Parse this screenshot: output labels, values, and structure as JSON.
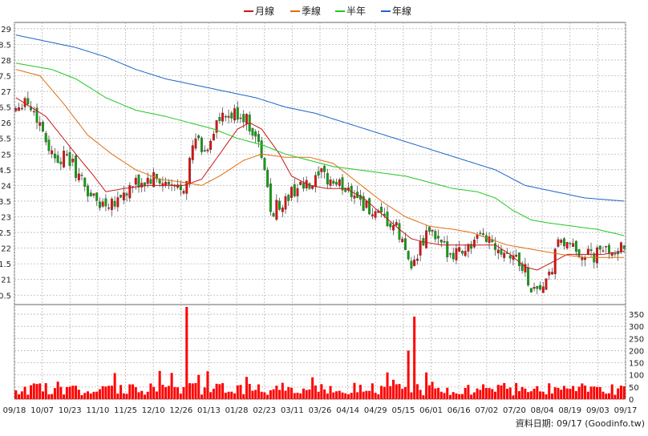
{
  "legend": [
    {
      "label": "月線",
      "color": "#c81818"
    },
    {
      "label": "季線",
      "color": "#e06e10"
    },
    {
      "label": "半年",
      "color": "#22c822"
    },
    {
      "label": "年線",
      "color": "#1e64c8"
    }
  ],
  "footer": {
    "label": "資料日期: 09/17  (Goodinfo.tw)"
  },
  "colors": {
    "up": "#e01010",
    "down": "#10a010",
    "volume": "#ff0000",
    "grid": "#b8b8b8"
  },
  "chart_data": [
    {
      "type": "candlestick",
      "title": "",
      "ylim": [
        20.2,
        29.2
      ],
      "y_ticks": [
        "29",
        "28.5",
        "28",
        "27.5",
        "27",
        "26.5",
        "26",
        "25.5",
        "25",
        "24.5",
        "24",
        "23.5",
        "23",
        "22.5",
        "22",
        "21.5",
        "21",
        "20.5"
      ],
      "y_tick_values": [
        29,
        28.5,
        28,
        27.5,
        27,
        26.5,
        26,
        25.5,
        25,
        24.5,
        24,
        23.5,
        23,
        22.5,
        22,
        21.5,
        21,
        20.5
      ],
      "x_labels": [
        "09/18",
        "10/07",
        "10/23",
        "11/10",
        "11/25",
        "12/10",
        "12/26",
        "01/13",
        "01/28",
        "02/23",
        "03/11",
        "03/26",
        "04/14",
        "04/29",
        "05/15",
        "06/01",
        "06/16",
        "07/02",
        "07/20",
        "08/04",
        "08/19",
        "09/03",
        "09/17"
      ],
      "close_anchors": [
        [
          0,
          26.5
        ],
        [
          3,
          26.8
        ],
        [
          8,
          26.0
        ],
        [
          12,
          25.0
        ],
        [
          18,
          24.8
        ],
        [
          24,
          23.8
        ],
        [
          28,
          23.4
        ],
        [
          34,
          23.6
        ],
        [
          40,
          24.0
        ],
        [
          46,
          24.2
        ],
        [
          52,
          23.9
        ],
        [
          56,
          24.0
        ],
        [
          60,
          25.5
        ],
        [
          63,
          25.0
        ],
        [
          67,
          26.0
        ],
        [
          72,
          26.2
        ],
        [
          75,
          26.3
        ],
        [
          79,
          25.8
        ],
        [
          82,
          25.0
        ],
        [
          85,
          23.2
        ],
        [
          90,
          23.5
        ],
        [
          94,
          24.0
        ],
        [
          98,
          23.9
        ],
        [
          102,
          24.3
        ],
        [
          108,
          24.0
        ],
        [
          113,
          23.8
        ],
        [
          116,
          23.4
        ],
        [
          120,
          23.0
        ],
        [
          124,
          22.8
        ],
        [
          127,
          22.6
        ],
        [
          131,
          21.7
        ],
        [
          133,
          21.5
        ],
        [
          136,
          22.2
        ],
        [
          138,
          22.6
        ],
        [
          142,
          22.0
        ],
        [
          146,
          21.9
        ],
        [
          150,
          22.0
        ],
        [
          154,
          22.2
        ],
        [
          156,
          22.4
        ],
        [
          158,
          22.3
        ],
        [
          162,
          22.0
        ],
        [
          166,
          21.8
        ],
        [
          170,
          21.3
        ],
        [
          172,
          20.7
        ],
        [
          176,
          20.8
        ],
        [
          178,
          21.0
        ],
        [
          180,
          21.8
        ],
        [
          182,
          22.3
        ],
        [
          184,
          22.0
        ],
        [
          188,
          21.9
        ],
        [
          192,
          21.7
        ],
        [
          196,
          21.9
        ],
        [
          200,
          22.0
        ],
        [
          203,
          21.9
        ]
      ],
      "series": [
        {
          "name": "月線",
          "anchors": [
            [
              0,
              26.8
            ],
            [
              10,
              26.2
            ],
            [
              20,
              25.0
            ],
            [
              26,
              24.3
            ],
            [
              30,
              23.8
            ],
            [
              36,
              23.9
            ],
            [
              44,
              24.0
            ],
            [
              50,
              24.0
            ],
            [
              56,
              24.0
            ],
            [
              62,
              24.2
            ],
            [
              68,
              25.0
            ],
            [
              74,
              25.8
            ],
            [
              78,
              26.0
            ],
            [
              82,
              25.8
            ],
            [
              88,
              25.0
            ],
            [
              92,
              24.3
            ],
            [
              98,
              24.0
            ],
            [
              104,
              23.9
            ],
            [
              110,
              23.9
            ],
            [
              116,
              23.6
            ],
            [
              122,
              23.1
            ],
            [
              128,
              22.6
            ],
            [
              132,
              22.3
            ],
            [
              136,
              22.2
            ],
            [
              142,
              22.1
            ],
            [
              148,
              22.1
            ],
            [
              154,
              22.1
            ],
            [
              160,
              22.1
            ],
            [
              165,
              21.8
            ],
            [
              170,
              21.4
            ],
            [
              174,
              21.3
            ],
            [
              178,
              21.5
            ],
            [
              184,
              21.8
            ],
            [
              190,
              21.8
            ],
            [
              196,
              21.8
            ],
            [
              203,
              21.9
            ]
          ]
        },
        {
          "name": "季線",
          "anchors": [
            [
              0,
              27.7
            ],
            [
              8,
              27.5
            ],
            [
              16,
              26.6
            ],
            [
              24,
              25.6
            ],
            [
              32,
              25.0
            ],
            [
              40,
              24.5
            ],
            [
              48,
              24.2
            ],
            [
              56,
              24.1
            ],
            [
              62,
              24.0
            ],
            [
              68,
              24.3
            ],
            [
              76,
              24.8
            ],
            [
              82,
              25.0
            ],
            [
              90,
              24.9
            ],
            [
              98,
              24.9
            ],
            [
              106,
              24.7
            ],
            [
              114,
              24.1
            ],
            [
              122,
              23.5
            ],
            [
              130,
              23.0
            ],
            [
              138,
              22.7
            ],
            [
              146,
              22.6
            ],
            [
              152,
              22.5
            ],
            [
              158,
              22.3
            ],
            [
              164,
              22.1
            ],
            [
              170,
              22.0
            ],
            [
              176,
              21.9
            ],
            [
              182,
              21.8
            ],
            [
              190,
              21.7
            ],
            [
              196,
              21.7
            ],
            [
              203,
              21.7
            ]
          ]
        },
        {
          "name": "半年",
          "anchors": [
            [
              0,
              27.9
            ],
            [
              6,
              27.8
            ],
            [
              12,
              27.7
            ],
            [
              20,
              27.4
            ],
            [
              30,
              26.8
            ],
            [
              40,
              26.4
            ],
            [
              50,
              26.2
            ],
            [
              58,
              26.0
            ],
            [
              66,
              25.8
            ],
            [
              74,
              25.5
            ],
            [
              82,
              25.3
            ],
            [
              90,
              25.0
            ],
            [
              98,
              24.8
            ],
            [
              106,
              24.6
            ],
            [
              114,
              24.5
            ],
            [
              122,
              24.4
            ],
            [
              130,
              24.3
            ],
            [
              138,
              24.1
            ],
            [
              146,
              23.9
            ],
            [
              154,
              23.8
            ],
            [
              160,
              23.6
            ],
            [
              166,
              23.2
            ],
            [
              172,
              22.9
            ],
            [
              178,
              22.8
            ],
            [
              186,
              22.7
            ],
            [
              194,
              22.6
            ],
            [
              203,
              22.4
            ]
          ]
        },
        {
          "name": "年線",
          "anchors": [
            [
              0,
              28.8
            ],
            [
              10,
              28.6
            ],
            [
              20,
              28.4
            ],
            [
              30,
              28.1
            ],
            [
              40,
              27.7
            ],
            [
              50,
              27.4
            ],
            [
              60,
              27.2
            ],
            [
              70,
              27.0
            ],
            [
              80,
              26.8
            ],
            [
              90,
              26.5
            ],
            [
              100,
              26.3
            ],
            [
              110,
              26.0
            ],
            [
              120,
              25.7
            ],
            [
              130,
              25.4
            ],
            [
              140,
              25.1
            ],
            [
              150,
              24.8
            ],
            [
              160,
              24.5
            ],
            [
              170,
              24.0
            ],
            [
              180,
              23.8
            ],
            [
              190,
              23.6
            ],
            [
              203,
              23.5
            ]
          ]
        }
      ]
    },
    {
      "type": "bar",
      "title": "",
      "ylim": [
        0,
        370
      ],
      "y_ticks": [
        "350",
        "300",
        "250",
        "200",
        "150",
        "100",
        "50",
        "0"
      ],
      "y_tick_values": [
        350,
        300,
        250,
        200,
        150,
        100,
        50,
        0
      ],
      "spikes": [
        [
          57,
          380
        ],
        [
          61,
          100
        ],
        [
          99,
          90
        ],
        [
          124,
          110
        ],
        [
          126,
          80
        ],
        [
          131,
          200
        ],
        [
          133,
          340
        ],
        [
          137,
          110
        ]
      ],
      "baseline_range": [
        15,
        80
      ]
    }
  ]
}
